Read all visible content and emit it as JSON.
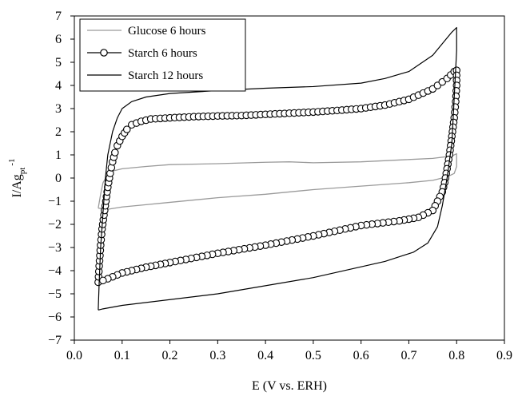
{
  "chart_data": {
    "type": "line",
    "title": "",
    "xlabel": "E (V vs. ERH)",
    "ylabel_main": "I/Ag",
    "ylabel_sub": "pt",
    "ylabel_sup": "-1",
    "xlim": [
      0.0,
      0.9
    ],
    "ylim": [
      -7,
      7
    ],
    "x_ticks": [
      0.0,
      0.1,
      0.2,
      0.3,
      0.4,
      0.5,
      0.6,
      0.7,
      0.8,
      0.9
    ],
    "x_tick_labels": [
      "0.0",
      "0.1",
      "0.2",
      "0.3",
      "0.4",
      "0.5",
      "0.6",
      "0.7",
      "0.8",
      "0.9"
    ],
    "y_ticks": [
      -7,
      -6,
      -5,
      -4,
      -3,
      -2,
      -1,
      0,
      1,
      2,
      3,
      4,
      5,
      6,
      7
    ],
    "y_tick_labels": [
      "−7",
      "−6",
      "−5",
      "−4",
      "−3",
      "−2",
      "−1",
      "0",
      "1",
      "2",
      "3",
      "4",
      "5",
      "6",
      "7"
    ],
    "grid": false,
    "legend_position": "top-left",
    "series": [
      {
        "name": "Glucose 6 hours",
        "color": "#9a9a9a",
        "marker": "none",
        "points": [
          [
            0.05,
            -1.3
          ],
          [
            0.055,
            -0.7
          ],
          [
            0.06,
            -0.2
          ],
          [
            0.07,
            0.15
          ],
          [
            0.08,
            0.3
          ],
          [
            0.1,
            0.4
          ],
          [
            0.15,
            0.5
          ],
          [
            0.2,
            0.58
          ],
          [
            0.3,
            0.62
          ],
          [
            0.4,
            0.68
          ],
          [
            0.45,
            0.7
          ],
          [
            0.5,
            0.66
          ],
          [
            0.6,
            0.7
          ],
          [
            0.7,
            0.8
          ],
          [
            0.75,
            0.85
          ],
          [
            0.79,
            0.95
          ],
          [
            0.8,
            1.05
          ],
          [
            0.8,
            0.5
          ],
          [
            0.795,
            0.2
          ],
          [
            0.78,
            0.05
          ],
          [
            0.75,
            -0.1
          ],
          [
            0.7,
            -0.2
          ],
          [
            0.6,
            -0.35
          ],
          [
            0.5,
            -0.5
          ],
          [
            0.4,
            -0.7
          ],
          [
            0.3,
            -0.85
          ],
          [
            0.2,
            -1.05
          ],
          [
            0.15,
            -1.15
          ],
          [
            0.1,
            -1.25
          ],
          [
            0.07,
            -1.35
          ],
          [
            0.05,
            -1.3
          ]
        ]
      },
      {
        "name": "Starch 6 hours",
        "color": "#000000",
        "marker": "circle",
        "points": [
          [
            0.05,
            -4.5
          ],
          [
            0.052,
            -3.8
          ],
          [
            0.055,
            -2.9
          ],
          [
            0.058,
            -2.2
          ],
          [
            0.062,
            -1.6
          ],
          [
            0.066,
            -1.0
          ],
          [
            0.07,
            -0.4
          ],
          [
            0.075,
            0.2
          ],
          [
            0.08,
            0.7
          ],
          [
            0.085,
            1.1
          ],
          [
            0.09,
            1.4
          ],
          [
            0.1,
            1.8
          ],
          [
            0.11,
            2.1
          ],
          [
            0.12,
            2.3
          ],
          [
            0.14,
            2.45
          ],
          [
            0.16,
            2.55
          ],
          [
            0.2,
            2.6
          ],
          [
            0.25,
            2.65
          ],
          [
            0.3,
            2.68
          ],
          [
            0.35,
            2.7
          ],
          [
            0.4,
            2.75
          ],
          [
            0.45,
            2.8
          ],
          [
            0.5,
            2.85
          ],
          [
            0.55,
            2.92
          ],
          [
            0.6,
            3.0
          ],
          [
            0.65,
            3.15
          ],
          [
            0.7,
            3.4
          ],
          [
            0.75,
            3.85
          ],
          [
            0.78,
            4.3
          ],
          [
            0.795,
            4.6
          ],
          [
            0.8,
            4.65
          ],
          [
            0.8,
            4.0
          ],
          [
            0.798,
            3.3
          ],
          [
            0.795,
            2.6
          ],
          [
            0.79,
            1.8
          ],
          [
            0.785,
            1.0
          ],
          [
            0.78,
            0.4
          ],
          [
            0.775,
            -0.2
          ],
          [
            0.77,
            -0.6
          ],
          [
            0.76,
            -1.0
          ],
          [
            0.75,
            -1.4
          ],
          [
            0.72,
            -1.7
          ],
          [
            0.68,
            -1.85
          ],
          [
            0.6,
            -2.05
          ],
          [
            0.5,
            -2.5
          ],
          [
            0.4,
            -2.9
          ],
          [
            0.3,
            -3.25
          ],
          [
            0.2,
            -3.65
          ],
          [
            0.15,
            -3.85
          ],
          [
            0.1,
            -4.1
          ],
          [
            0.07,
            -4.35
          ],
          [
            0.05,
            -4.5
          ]
        ]
      },
      {
        "name": "Starch 12 hours",
        "color": "#000000",
        "marker": "none",
        "points": [
          [
            0.05,
            -5.7
          ],
          [
            0.052,
            -4.5
          ],
          [
            0.055,
            -3.0
          ],
          [
            0.06,
            -1.5
          ],
          [
            0.065,
            0.0
          ],
          [
            0.07,
            1.0
          ],
          [
            0.08,
            2.0
          ],
          [
            0.09,
            2.6
          ],
          [
            0.1,
            3.0
          ],
          [
            0.12,
            3.3
          ],
          [
            0.15,
            3.5
          ],
          [
            0.2,
            3.65
          ],
          [
            0.3,
            3.78
          ],
          [
            0.4,
            3.88
          ],
          [
            0.5,
            3.95
          ],
          [
            0.6,
            4.1
          ],
          [
            0.65,
            4.3
          ],
          [
            0.7,
            4.6
          ],
          [
            0.75,
            5.3
          ],
          [
            0.79,
            6.3
          ],
          [
            0.8,
            6.5
          ],
          [
            0.8,
            5.5
          ],
          [
            0.795,
            3.5
          ],
          [
            0.79,
            1.5
          ],
          [
            0.78,
            0.0
          ],
          [
            0.77,
            -1.2
          ],
          [
            0.76,
            -2.1
          ],
          [
            0.74,
            -2.8
          ],
          [
            0.71,
            -3.2
          ],
          [
            0.65,
            -3.6
          ],
          [
            0.5,
            -4.3
          ],
          [
            0.3,
            -5.0
          ],
          [
            0.1,
            -5.5
          ],
          [
            0.06,
            -5.65
          ],
          [
            0.05,
            -5.7
          ]
        ]
      }
    ]
  }
}
